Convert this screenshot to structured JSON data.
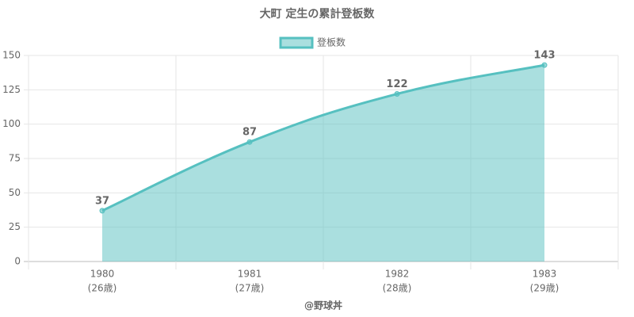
{
  "chart_data": {
    "type": "area",
    "title": "大町 定生の累計登板数",
    "categories": [
      "1980",
      "1981",
      "1982",
      "1983"
    ],
    "category_sublabels": [
      "(26歳)",
      "(27歳)",
      "(28歳)",
      "(29歳)"
    ],
    "series": [
      {
        "name": "登板数",
        "color": "#56c0c0",
        "values": [
          37,
          87,
          122,
          143
        ]
      }
    ],
    "ylim": [
      0,
      150
    ],
    "yticks": [
      0,
      25,
      50,
      75,
      100,
      125,
      150
    ],
    "grid": true,
    "legend": "top",
    "footer": "@野球丼"
  }
}
